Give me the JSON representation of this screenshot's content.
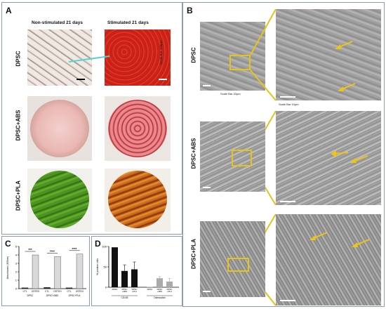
{
  "panel_a": {
    "letter": "A",
    "col_left": "Non-stimulated 21 days",
    "col_right": "Stimulated 21 days",
    "rows": [
      "DPSC",
      "DPSC+ABS",
      "DPSC+PLA"
    ],
    "scale_note": "Scale Bar 100μm"
  },
  "panel_b": {
    "letter": "B",
    "rows": [
      "DPSC",
      "DPSC+ABS",
      "DPSC+PLA"
    ],
    "scale_left": "Scale Bar 20μm",
    "scale_right": "Scale Bar 10μm"
  },
  "panel_c": {
    "letter": "C",
    "chart_data": {
      "type": "bar",
      "ylabel": "Absorbance (405nm)",
      "ylim": [
        0,
        5
      ],
      "yticks": [
        "0",
        "1",
        "2",
        "3",
        "4",
        "5"
      ],
      "groups": [
        "DPSC",
        "DPSC+ABS",
        "DPSC+PLA"
      ],
      "categories": [
        "CTL",
        "OSTEO",
        "CTL",
        "OSTEO",
        "CTL",
        "OSTEO"
      ],
      "values": [
        0.1,
        4.0,
        0.15,
        3.8,
        0.1,
        4.1
      ],
      "significance": [
        "***",
        "****",
        "****"
      ],
      "colors": [
        "#333333",
        "#d9d9d9",
        "#333333",
        "#d9d9d9",
        "#333333",
        "#d9d9d9"
      ]
    }
  },
  "panel_d": {
    "letter": "D",
    "chart_data": {
      "type": "bar",
      "ylabel": "% positive cells",
      "ylim": [
        0,
        100
      ],
      "yticks": [
        "0",
        "50",
        "100"
      ],
      "groups": [
        "CD105",
        "Osteocalcin"
      ],
      "categories": [
        "DPSC",
        "DPSC +ABS",
        "DPSC +PLA",
        "DPSC",
        "DPSC +ABS",
        "DPSC +PLA"
      ],
      "series": [
        {
          "values": [
            98,
            40,
            44,
            1,
            22,
            14
          ],
          "errors": [
            0,
            15,
            18,
            0,
            4,
            8
          ]
        }
      ],
      "colors": [
        "#111111",
        "#111111",
        "#111111",
        "#aaaaaa",
        "#aaaaaa",
        "#aaaaaa"
      ]
    }
  }
}
